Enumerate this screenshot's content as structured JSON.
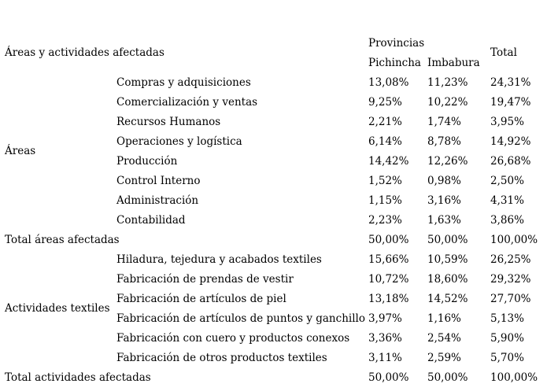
{
  "page": {
    "background_color": "#ffffff",
    "text_color": "#000000"
  },
  "table": {
    "corner_header": "Áreas y actividades afectadas",
    "provinces_header": "Provincias",
    "total_header": "Total",
    "subheaders": {
      "pichincha": "Pichincha",
      "imbabura": "Imbabura"
    },
    "groups": [
      {
        "label": "Áreas",
        "rows": [
          {
            "item": "Compras y adquisiciones",
            "pichincha": "13,08%",
            "imbabura": "11,23%",
            "total": "24,31%"
          },
          {
            "item": "Comercialización y ventas",
            "pichincha": "9,25%",
            "imbabura": "10,22%",
            "total": "19,47%"
          },
          {
            "item": "Recursos Humanos",
            "pichincha": "2,21%",
            "imbabura": "1,74%",
            "total": "3,95%"
          },
          {
            "item": "Operaciones y logística",
            "pichincha": "6,14%",
            "imbabura": "8,78%",
            "total": "14,92%"
          },
          {
            "item": "Producción",
            "pichincha": "14,42%",
            "imbabura": "12,26%",
            "total": "26,68%"
          },
          {
            "item": "Control Interno",
            "pichincha": "1,52%",
            "imbabura": "0,98%",
            "total": "2,50%"
          },
          {
            "item": "Administración",
            "pichincha": "1,15%",
            "imbabura": "3,16%",
            "total": "4,31%"
          },
          {
            "item": "Contabilidad",
            "pichincha": "2,23%",
            "imbabura": "1,63%",
            "total": "3,86%"
          }
        ],
        "total_row": {
          "label": "Total áreas afectadas",
          "pichincha": "50,00%",
          "imbabura": "50,00%",
          "total": "100,00%"
        }
      },
      {
        "label": "Actividades textiles",
        "rows": [
          {
            "item": "Hiladura, tejedura y acabados textiles",
            "pichincha": "15,66%",
            "imbabura": "10,59%",
            "total": "26,25%"
          },
          {
            "item": "Fabricación de prendas de vestir",
            "pichincha": "10,72%",
            "imbabura": "18,60%",
            "total": "29,32%"
          },
          {
            "item": "Fabricación de artículos de piel",
            "pichincha": "13,18%",
            "imbabura": "14,52%",
            "total": "27,70%"
          },
          {
            "item": "Fabricación de artículos de puntos y ganchillo",
            "pichincha": "3,97%",
            "imbabura": "1,16%",
            "total": "5,13%"
          },
          {
            "item": "Fabricación con cuero y productos conexos",
            "pichincha": "3,36%",
            "imbabura": "2,54%",
            "total": "5,90%"
          },
          {
            "item": "Fabricación de otros productos textiles",
            "pichincha": "3,11%",
            "imbabura": "2,59%",
            "total": "5,70%"
          }
        ],
        "total_row": {
          "label": "Total actividades afectadas",
          "pichincha": "50,00%",
          "imbabura": "50,00%",
          "total": "100,00%"
        }
      }
    ]
  },
  "chart_data": {
    "type": "table",
    "title": "Áreas y actividades afectadas",
    "columns": [
      "Áreas y actividades afectadas",
      "Pichincha",
      "Imbabura",
      "Total"
    ],
    "rows": [
      [
        "Áreas",
        "Compras y adquisiciones",
        13.08,
        11.23,
        24.31
      ],
      [
        "Áreas",
        "Comercialización y ventas",
        9.25,
        10.22,
        19.47
      ],
      [
        "Áreas",
        "Recursos Humanos",
        2.21,
        1.74,
        3.95
      ],
      [
        "Áreas",
        "Operaciones y logística",
        6.14,
        8.78,
        14.92
      ],
      [
        "Áreas",
        "Producción",
        14.42,
        12.26,
        26.68
      ],
      [
        "Áreas",
        "Control Interno",
        1.52,
        0.98,
        2.5
      ],
      [
        "Áreas",
        "Administración",
        1.15,
        3.16,
        4.31
      ],
      [
        "Áreas",
        "Contabilidad",
        2.23,
        1.63,
        3.86
      ],
      [
        "Total",
        "Total áreas afectadas",
        50.0,
        50.0,
        100.0
      ],
      [
        "Actividades textiles",
        "Hiladura, tejedura y acabados textiles",
        15.66,
        10.59,
        26.25
      ],
      [
        "Actividades textiles",
        "Fabricación de prendas de vestir",
        10.72,
        18.6,
        29.32
      ],
      [
        "Actividades textiles",
        "Fabricación de artículos de piel",
        13.18,
        14.52,
        27.7
      ],
      [
        "Actividades textiles",
        "Fabricación de artículos de puntos y ganchillo",
        3.97,
        1.16,
        5.13
      ],
      [
        "Actividades textiles",
        "Fabricación con cuero y productos conexos",
        3.36,
        2.54,
        5.9
      ],
      [
        "Actividades textiles",
        "Fabricación de otros productos textiles",
        3.11,
        2.59,
        5.7
      ],
      [
        "Total",
        "Total actividades afectadas",
        50.0,
        50.0,
        100.0
      ]
    ],
    "units": "percent",
    "grid": false,
    "legend_position": "none"
  }
}
